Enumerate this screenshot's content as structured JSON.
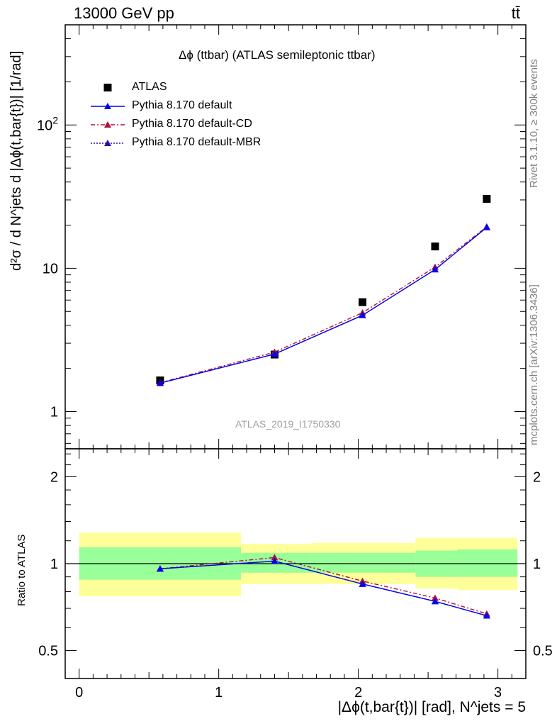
{
  "header": {
    "energy": "13000 GeV pp",
    "process": "tt̄"
  },
  "side": {
    "rivet": "Rivet 3.1.10, ≥ 300k events",
    "mcplots": "mcplots.cern.ch [arXiv:1306.3436]"
  },
  "main_plot": {
    "title": "Δϕ (ttbar) (ATLAS semileptonic ttbar)",
    "ylabel": "d²σ / d N^jets d |Δϕ(t,bar{t})| [1/rad]",
    "watermark": "ATLAS_2019_I1750330",
    "legend": [
      {
        "label": "ATLAS"
      },
      {
        "label": "Pythia 8.170 default"
      },
      {
        "label": "Pythia 8.170 default-CD"
      },
      {
        "label": "Pythia 8.170 default-MBR"
      }
    ]
  },
  "ratio_plot": {
    "ylabel": "Ratio to ATLAS"
  },
  "xlabel": "|Δϕ(t,bar{t})| [rad], N^jets = 5",
  "colors": {
    "data": "#000000",
    "default": "#0000ee",
    "cd": "#b0103a",
    "mbr": "#2a0fb0",
    "band_inner": "#99ff99",
    "band_outer": "#ffff99"
  },
  "chart_data": [
    {
      "type": "scatter",
      "panel": "main",
      "yscale": "log",
      "xlim": [
        -0.1,
        3.2
      ],
      "ylim": [
        0.55,
        500
      ],
      "x_ticks": [
        "0",
        "1",
        "2",
        "3"
      ],
      "y_ticks": [
        "1",
        "10",
        "10^2"
      ],
      "x": [
        0.58,
        1.4,
        2.03,
        2.55,
        2.92
      ],
      "series": [
        {
          "name": "ATLAS",
          "values": [
            1.65,
            2.5,
            5.8,
            14.2,
            30.5
          ]
        },
        {
          "name": "Pythia 8.170 default",
          "values": [
            1.58,
            2.52,
            4.7,
            9.8,
            19.3
          ]
        },
        {
          "name": "Pythia 8.170 default-CD",
          "values": [
            1.59,
            2.6,
            4.9,
            10.2,
            19.5
          ]
        },
        {
          "name": "Pythia 8.170 default-MBR",
          "values": [
            1.58,
            2.52,
            4.7,
            9.8,
            19.3
          ]
        }
      ]
    },
    {
      "type": "line",
      "panel": "ratio",
      "yscale": "log",
      "xlim": [
        -0.1,
        3.2
      ],
      "ylim": [
        0.4,
        2.5
      ],
      "y_ticks": [
        "0.5",
        "1",
        "2"
      ],
      "x": [
        0.58,
        1.4,
        2.03,
        2.55,
        2.92
      ],
      "series": [
        {
          "name": "Pythia 8.170 default",
          "values": [
            0.96,
            1.02,
            0.85,
            0.74,
            0.66
          ]
        },
        {
          "name": "Pythia 8.170 default-CD",
          "values": [
            0.96,
            1.05,
            0.87,
            0.76,
            0.67
          ]
        },
        {
          "name": "Pythia 8.170 default-MBR",
          "values": [
            0.96,
            1.02,
            0.85,
            0.74,
            0.66
          ]
        }
      ],
      "bands": [
        {
          "xmin": 0.0,
          "xmax": 1.16,
          "inner": [
            0.88,
            1.14
          ],
          "outer": [
            0.77,
            1.28
          ]
        },
        {
          "xmin": 1.16,
          "xmax": 1.66,
          "inner": [
            0.93,
            1.09
          ],
          "outer": [
            0.85,
            1.17
          ]
        },
        {
          "xmin": 1.66,
          "xmax": 2.41,
          "inner": [
            0.93,
            1.09
          ],
          "outer": [
            0.85,
            1.18
          ]
        },
        {
          "xmin": 2.41,
          "xmax": 2.71,
          "inner": [
            0.9,
            1.11
          ],
          "outer": [
            0.82,
            1.23
          ]
        },
        {
          "xmin": 2.71,
          "xmax": 3.14,
          "inner": [
            0.9,
            1.12
          ],
          "outer": [
            0.81,
            1.23
          ]
        }
      ]
    }
  ]
}
